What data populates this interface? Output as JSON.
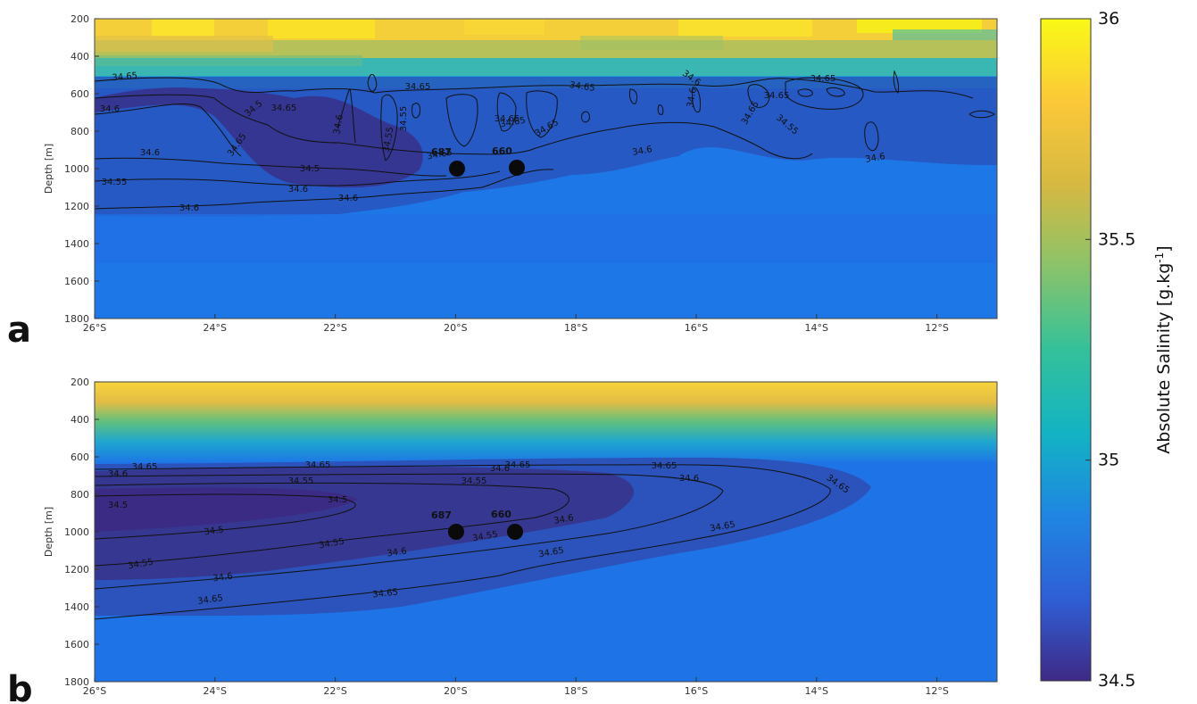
{
  "colorbar": {
    "label": "Absolute Salinity [g.kg",
    "label_sup": "-1",
    "label_close": "]",
    "min": 34.5,
    "max": 36,
    "ticks": [
      "36",
      "35.5",
      "35",
      "34.5"
    ],
    "colors": [
      "#3e2a86",
      "#2f5fd6",
      "#1f86e2",
      "#13b3c3",
      "#34c19a",
      "#8ac36a",
      "#d6b941",
      "#fbc838",
      "#f9f916"
    ]
  },
  "chart_data": [
    {
      "type": "heatmap",
      "panel_label": "a",
      "ylabel": "Depth [m]",
      "x_ticks": [
        "26°S",
        "24°S",
        "22°S",
        "20°S",
        "18°S",
        "16°S",
        "14°S",
        "12°S"
      ],
      "y_ticks": [
        "200",
        "400",
        "600",
        "800",
        "1000",
        "1200",
        "1400",
        "1600",
        "1800"
      ],
      "xlim": [
        "26°S",
        "11°S"
      ],
      "ylim": [
        1800,
        200
      ],
      "contour_levels": [
        34.5,
        34.55,
        34.6,
        34.65
      ],
      "contour_labels": [
        "34.65",
        "34.65",
        "34.6",
        "34.65",
        "34.65",
        "34.6",
        "34.65",
        "34.6",
        "34.55",
        "34.55",
        "34.6",
        "34.5",
        "34.55",
        "34.6",
        "34.6",
        "34.6",
        "34.65",
        "34.65",
        "34.65",
        "34.65",
        "34.55",
        "34.6",
        "34.65",
        "34.65",
        "34.6",
        "34.6",
        "34.5",
        "34.65"
      ],
      "floats": [
        {
          "id": "687",
          "lat": "20°S",
          "depth": 1000
        },
        {
          "id": "660",
          "lat": "19°S",
          "depth": 1000
        }
      ]
    },
    {
      "type": "heatmap",
      "panel_label": "b",
      "ylabel": "Depth [m]",
      "x_ticks": [
        "26°S",
        "24°S",
        "22°S",
        "20°S",
        "18°S",
        "16°S",
        "14°S",
        "12°S"
      ],
      "y_ticks": [
        "200",
        "400",
        "600",
        "800",
        "1000",
        "1200",
        "1400",
        "1600",
        "1800"
      ],
      "xlim": [
        "26°S",
        "11°S"
      ],
      "ylim": [
        1800,
        200
      ],
      "contour_levels": [
        34.5,
        34.55,
        34.6,
        34.65
      ],
      "contour_labels": [
        "34.65",
        "34.65",
        "34.65",
        "34.65",
        "34.65",
        "34.6",
        "34.55",
        "34.55",
        "34.6",
        "34.5",
        "34.5",
        "34.5",
        "34.55",
        "34.55",
        "34.55",
        "34.6",
        "34.6",
        "34.6",
        "34.65",
        "34.65",
        "34.65",
        "34.6",
        "34.65"
      ],
      "floats": [
        {
          "id": "687",
          "lat": "20°S",
          "depth": 1000
        },
        {
          "id": "660",
          "lat": "19°S",
          "depth": 1000
        }
      ]
    }
  ]
}
